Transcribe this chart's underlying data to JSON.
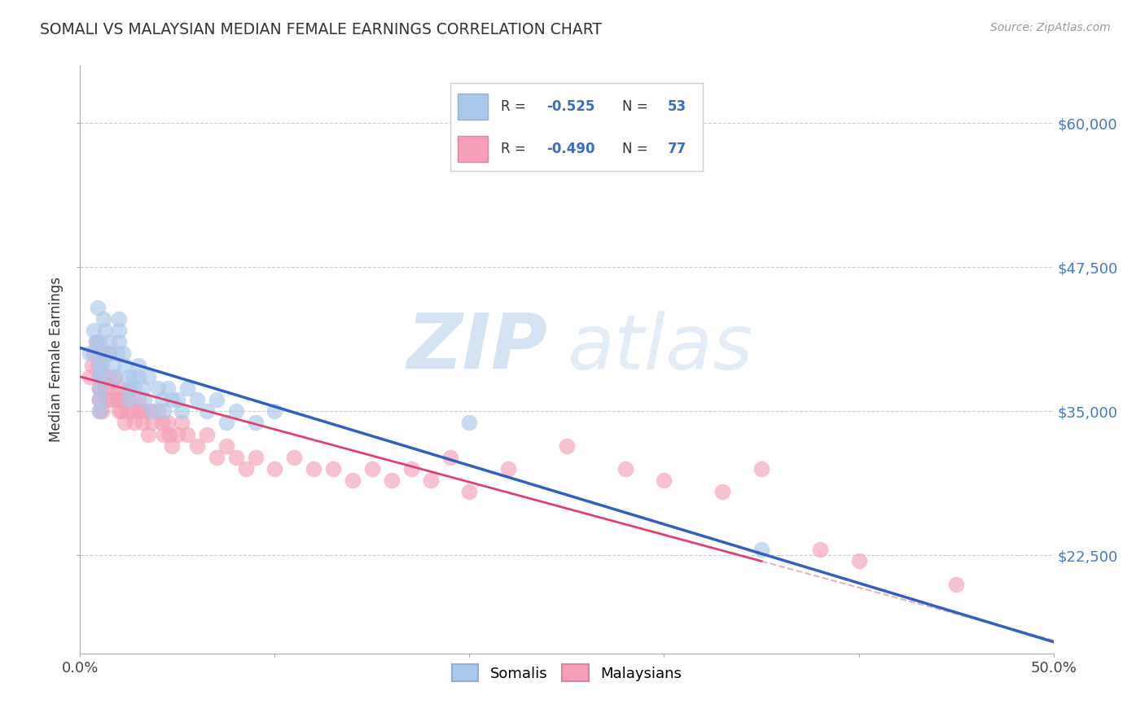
{
  "title": "SOMALI VS MALAYSIAN MEDIAN FEMALE EARNINGS CORRELATION CHART",
  "source": "Source: ZipAtlas.com",
  "ylabel": "Median Female Earnings",
  "yticks": [
    22500,
    35000,
    47500,
    60000
  ],
  "ytick_labels": [
    "$22,500",
    "$35,000",
    "$47,500",
    "$60,000"
  ],
  "xlim": [
    0.0,
    0.5
  ],
  "ylim": [
    14000,
    65000
  ],
  "legend_labels": [
    "Somalis",
    "Malaysians"
  ],
  "somali_color": "#aac8ea",
  "malaysian_color": "#f4a0b8",
  "somali_line_color": "#3060c0",
  "malaysian_line_color": "#e04070",
  "trend_dashed_color": "#e8b0c0",
  "background_color": "#ffffff",
  "grid_color": "#cccccc",
  "somali_x": [
    0.005,
    0.007,
    0.008,
    0.009,
    0.01,
    0.01,
    0.01,
    0.01,
    0.01,
    0.01,
    0.01,
    0.01,
    0.011,
    0.012,
    0.013,
    0.015,
    0.015,
    0.017,
    0.018,
    0.019,
    0.02,
    0.02,
    0.02,
    0.022,
    0.023,
    0.025,
    0.025,
    0.025,
    0.027,
    0.028,
    0.03,
    0.03,
    0.032,
    0.033,
    0.035,
    0.037,
    0.04,
    0.042,
    0.043,
    0.045,
    0.047,
    0.05,
    0.052,
    0.055,
    0.06,
    0.065,
    0.07,
    0.075,
    0.08,
    0.09,
    0.1,
    0.2,
    0.35
  ],
  "somali_y": [
    40000,
    42000,
    41000,
    44000,
    38000,
    40000,
    39000,
    36000,
    35000,
    37000,
    38000,
    41000,
    39000,
    43000,
    42000,
    41000,
    40000,
    39000,
    38000,
    40000,
    41000,
    42000,
    43000,
    40000,
    39000,
    38000,
    37000,
    36000,
    38000,
    37000,
    39000,
    38000,
    37000,
    36000,
    38000,
    35000,
    37000,
    36000,
    35000,
    37000,
    36000,
    36000,
    35000,
    37000,
    36000,
    35000,
    36000,
    34000,
    35000,
    34000,
    35000,
    34000,
    23000
  ],
  "malaysian_x": [
    0.005,
    0.006,
    0.007,
    0.008,
    0.009,
    0.01,
    0.01,
    0.01,
    0.01,
    0.01,
    0.01,
    0.01,
    0.01,
    0.011,
    0.012,
    0.013,
    0.014,
    0.015,
    0.015,
    0.016,
    0.017,
    0.018,
    0.019,
    0.02,
    0.02,
    0.02,
    0.021,
    0.022,
    0.023,
    0.025,
    0.025,
    0.025,
    0.027,
    0.028,
    0.03,
    0.03,
    0.032,
    0.033,
    0.035,
    0.036,
    0.037,
    0.04,
    0.042,
    0.043,
    0.045,
    0.046,
    0.047,
    0.05,
    0.052,
    0.055,
    0.06,
    0.065,
    0.07,
    0.075,
    0.08,
    0.085,
    0.09,
    0.1,
    0.11,
    0.12,
    0.13,
    0.14,
    0.15,
    0.16,
    0.17,
    0.18,
    0.19,
    0.2,
    0.22,
    0.25,
    0.28,
    0.3,
    0.33,
    0.35,
    0.38,
    0.4,
    0.45
  ],
  "malaysian_y": [
    38000,
    39000,
    40000,
    41000,
    39000,
    40000,
    38000,
    36000,
    35000,
    37000,
    39000,
    36000,
    37000,
    35000,
    38000,
    37000,
    36000,
    40000,
    38000,
    36000,
    37000,
    38000,
    36000,
    35000,
    36000,
    37000,
    35000,
    36000,
    34000,
    36000,
    35000,
    37000,
    35000,
    34000,
    35000,
    36000,
    34000,
    35000,
    33000,
    35000,
    34000,
    35000,
    34000,
    33000,
    34000,
    33000,
    32000,
    33000,
    34000,
    33000,
    32000,
    33000,
    31000,
    32000,
    31000,
    30000,
    31000,
    30000,
    31000,
    30000,
    30000,
    29000,
    30000,
    29000,
    30000,
    29000,
    31000,
    28000,
    30000,
    32000,
    30000,
    29000,
    28000,
    30000,
    23000,
    22000,
    20000
  ]
}
